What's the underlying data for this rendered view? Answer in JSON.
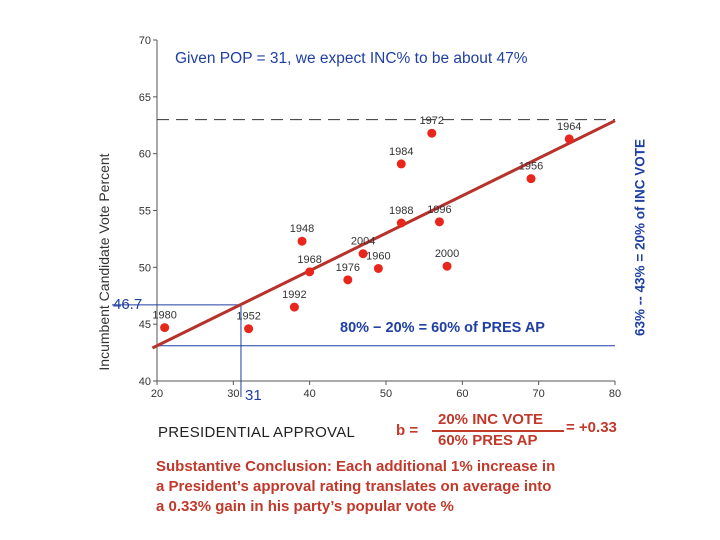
{
  "chart_data": {
    "type": "scatter",
    "title": "Given POP = 31, we expect INC% to be about 47%",
    "xlabel": "PRESIDENTIAL APPROVAL",
    "ylabel": "Incumbent Candidate Vote Percent",
    "xlim": [
      20,
      80
    ],
    "ylim": [
      40,
      70
    ],
    "x_ticks": [
      "20",
      "30",
      "40",
      "50",
      "60",
      "70",
      "80"
    ],
    "y_ticks": [
      "40",
      "45",
      "50",
      "55",
      "60",
      "65",
      "70"
    ],
    "points": [
      {
        "label": "1980",
        "x": 21,
        "y": 44.7
      },
      {
        "label": "1952",
        "x": 32,
        "y": 44.6
      },
      {
        "label": "1992",
        "x": 38,
        "y": 46.5
      },
      {
        "label": "1968",
        "x": 40,
        "y": 49.6
      },
      {
        "label": "1948",
        "x": 39,
        "y": 52.3
      },
      {
        "label": "1976",
        "x": 45,
        "y": 48.9
      },
      {
        "label": "2004",
        "x": 47,
        "y": 51.2
      },
      {
        "label": "1960",
        "x": 49,
        "y": 49.9
      },
      {
        "label": "1988",
        "x": 52,
        "y": 53.9
      },
      {
        "label": "1984",
        "x": 52,
        "y": 59.1
      },
      {
        "label": "1996",
        "x": 57,
        "y": 54.0
      },
      {
        "label": "2000",
        "x": 58,
        "y": 50.1
      },
      {
        "label": "1972",
        "x": 56,
        "y": 61.8
      },
      {
        "label": "1956",
        "x": 69,
        "y": 57.8
      },
      {
        "label": "1964",
        "x": 74,
        "y": 61.3
      }
    ],
    "regression": {
      "slope": 0.33,
      "intercept": 36.5,
      "x_range": [
        20,
        80
      ]
    },
    "reference_line_y": 63,
    "guide": {
      "x": 31,
      "y": 46.7,
      "x_label": "31",
      "y_label": "46.7"
    },
    "range_annotation": "80% − 20% = 60% of PRES AP",
    "right_annotation": "63% -- 43% = 20% of INC VOTE",
    "formula": {
      "b": "b =",
      "numerator": "20% INC VOTE",
      "denominator": "60% PRES AP",
      "result": "= +0.33"
    },
    "conclusion": [
      "Substantive Conclusion:  Each additional 1% increase in",
      "a President’s approval rating translates on average into",
      "a 0.33% gain in his party’s popular vote %"
    ],
    "colors": {
      "point": "#e8261b",
      "regression": "#b8322c",
      "annotation": "#1f3fa3",
      "conclusion": "#c0392b"
    }
  }
}
